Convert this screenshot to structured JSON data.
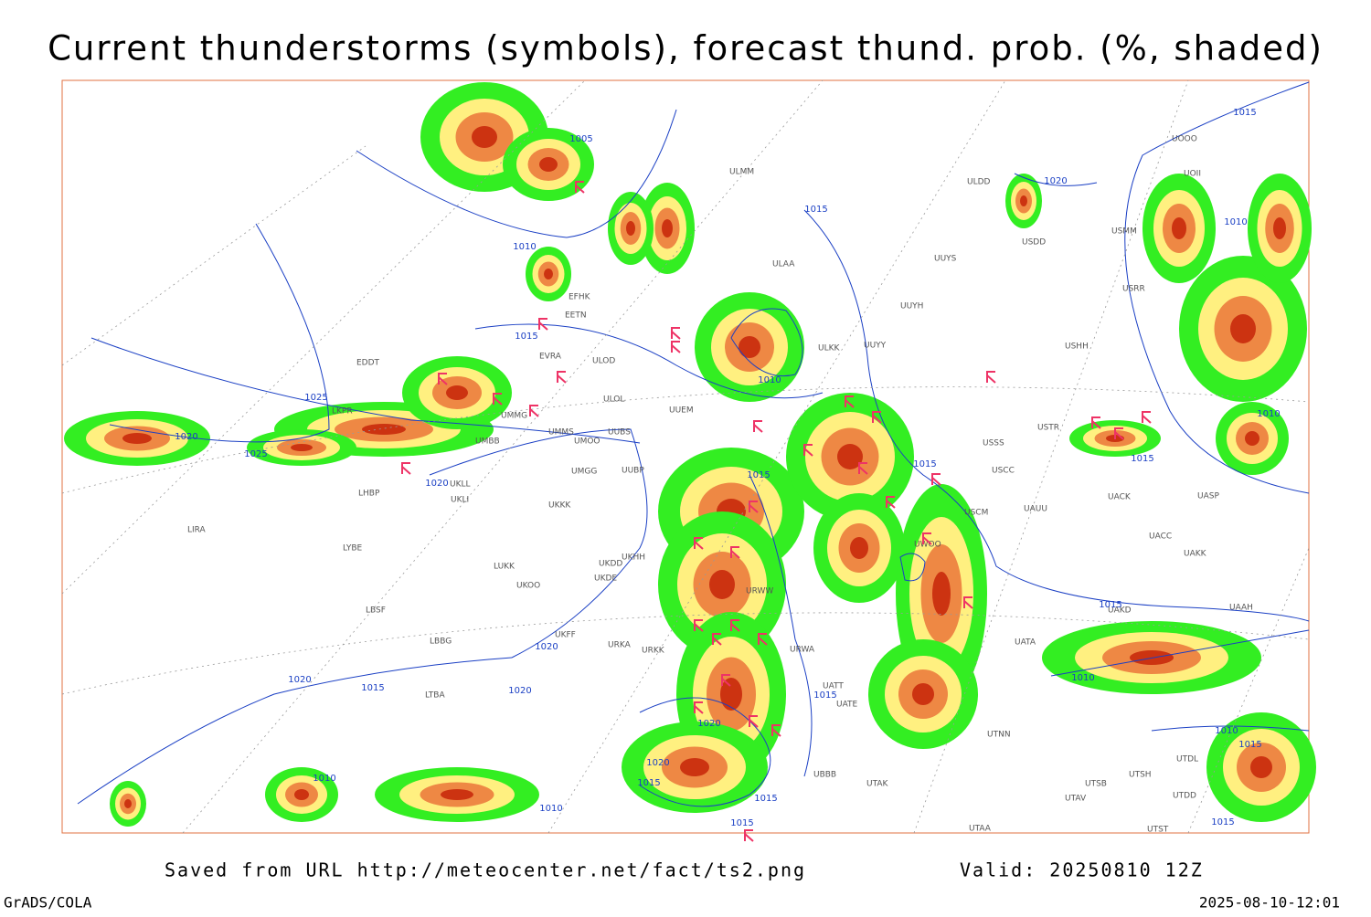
{
  "header": {
    "title": "Current thunderstorms (symbols), forecast thund. prob. (%, shaded)"
  },
  "footer": {
    "source": "Saved from URL http://meteocenter.net/fact/ts2.png",
    "valid": "Valid: 20250810 12Z",
    "software": "GrADS/COLA",
    "timestamp": "2025-08-10-12:01"
  },
  "map": {
    "isobar_labels": [
      "1005",
      "1010",
      "1015",
      "1015",
      "1025",
      "1020",
      "1025",
      "1020",
      "1015",
      "1010",
      "1015",
      "1020",
      "1015",
      "1010",
      "1010",
      "1015",
      "1015",
      "1010",
      "1020",
      "1020",
      "1015",
      "1020",
      "1015",
      "1020",
      "1020",
      "1015",
      "1015",
      "1015",
      "1010",
      "1010",
      "1010",
      "1015",
      "1015"
    ],
    "stations": [
      "EFHK",
      "EETN",
      "ULOD",
      "ULOL",
      "EVRA",
      "UMMG",
      "UMBB",
      "UMMS",
      "UMOO",
      "UUBS",
      "UUEM",
      "UMGG",
      "UUBP",
      "UKKK",
      "UKLL",
      "UKLI",
      "LHBP",
      "LKPR",
      "EDDT",
      "LIRA",
      "LYBE",
      "LBSF",
      "LBBG",
      "LTBA",
      "UKHH",
      "UKDD",
      "UKDE",
      "UKOO",
      "LUKK",
      "UKFF",
      "URKK",
      "URKA",
      "URWW",
      "URWA",
      "UATE",
      "UATT",
      "UBBB",
      "UTAK",
      "UTAA",
      "UTNN",
      "UATA",
      "UAKD",
      "UACC",
      "UAKK",
      "UACK",
      "UASP",
      "UAAH",
      "UAUU",
      "USCM",
      "USCC",
      "USSS",
      "USTR",
      "UWOO",
      "UUYY",
      "UUYH",
      "UUYS",
      "ULAA",
      "ULKK",
      "ULMM",
      "ULDD",
      "USDD",
      "USHH",
      "USRR",
      "UOOO",
      "UOII",
      "USMM",
      "UTDL",
      "UTSB",
      "UTSH",
      "UTAV",
      "UTST",
      "UTDD"
    ]
  }
}
